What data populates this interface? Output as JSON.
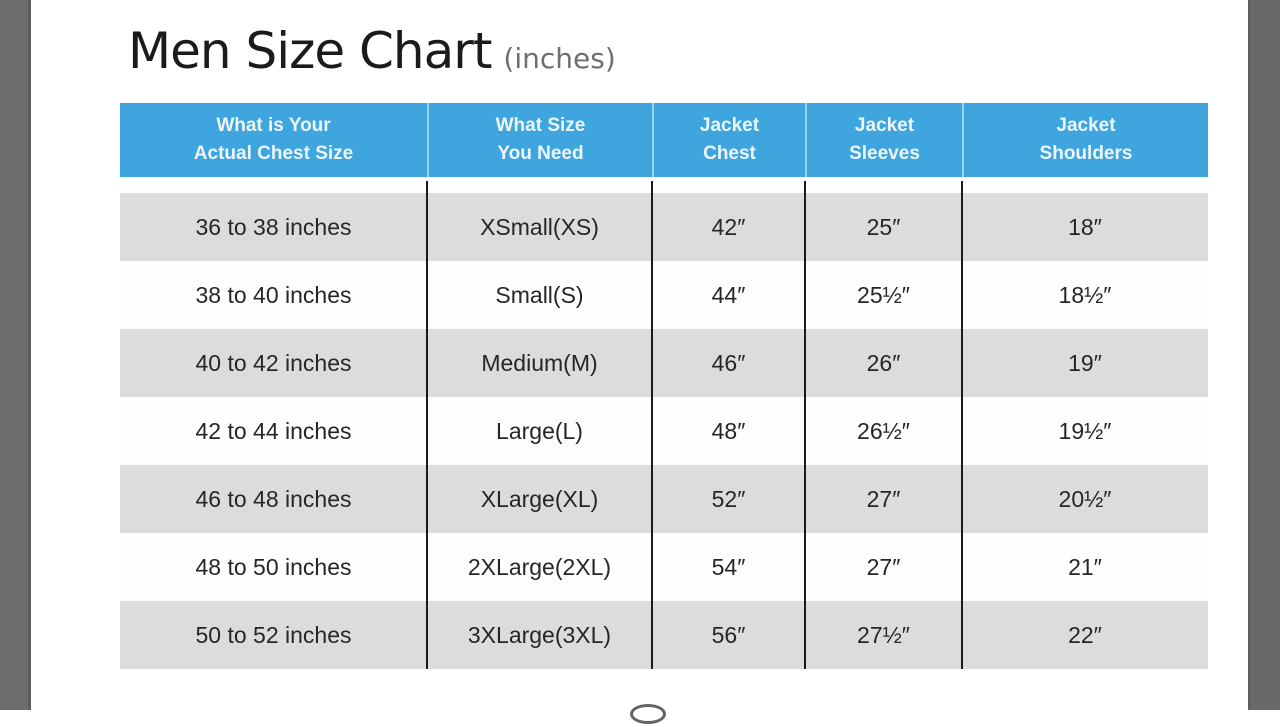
{
  "title": {
    "main": "Men Size Chart",
    "suffix": "(inches)"
  },
  "table": {
    "columns": [
      {
        "line1": "What is Your",
        "line2": "Actual Chest Size"
      },
      {
        "line1": "What Size",
        "line2": "You Need"
      },
      {
        "line1": "Jacket",
        "line2": "Chest"
      },
      {
        "line1": "Jacket",
        "line2": "Sleeves"
      },
      {
        "line1": "Jacket",
        "line2": "Shoulders"
      }
    ],
    "rows": [
      [
        "36 to 38 inches",
        "XSmall(XS)",
        "42″",
        "25″",
        "18″"
      ],
      [
        "38 to 40 inches",
        "Small(S)",
        "44″",
        "25½″",
        "18½″"
      ],
      [
        "40 to 42 inches",
        "Medium(M)",
        "46″",
        "26″",
        "19″"
      ],
      [
        "42 to 44 inches",
        "Large(L)",
        "48″",
        "26½″",
        "19½″"
      ],
      [
        "46 to 48 inches",
        "XLarge(XL)",
        "52″",
        "27″",
        "20½″"
      ],
      [
        "48 to 50 inches",
        "2XLarge(2XL)",
        "54″",
        "27″",
        "21″"
      ],
      [
        "50 to 52 inches",
        "3XLarge(3XL)",
        "56″",
        "27½″",
        "22″"
      ]
    ]
  },
  "colors": {
    "header_blue": "#3fa5de",
    "header_divider": "#9ed2ee",
    "header_text": "#ecf6fc",
    "row_gray": "#dcdcdc",
    "row_white": "#fefefe",
    "divider_black": "#1b1b1b",
    "letterbox_gray": "#6c6c6c",
    "title_text": "#1b1b1d",
    "title_suffix_gray": "#6f6f6f"
  },
  "chart_data": {
    "type": "table",
    "title": "Men Size Chart (inches)",
    "columns": [
      "What is Your Actual Chest Size",
      "What Size You Need",
      "Jacket Chest",
      "Jacket Sleeves",
      "Jacket Shoulders"
    ],
    "rows": [
      [
        "36 to 38 inches",
        "XSmall(XS)",
        "42″",
        "25″",
        "18″"
      ],
      [
        "38 to 40 inches",
        "Small(S)",
        "44″",
        "25½″",
        "18½″"
      ],
      [
        "40 to 42 inches",
        "Medium(M)",
        "46″",
        "26″",
        "19″"
      ],
      [
        "42 to 44 inches",
        "Large(L)",
        "48″",
        "26½″",
        "19½″"
      ],
      [
        "46 to 48 inches",
        "XLarge(XL)",
        "52″",
        "27″",
        "20½″"
      ],
      [
        "48 to 50 inches",
        "2XLarge(2XL)",
        "54″",
        "27″",
        "21″"
      ],
      [
        "50 to 52 inches",
        "3XLarge(3XL)",
        "56″",
        "27½″",
        "22″"
      ]
    ]
  }
}
